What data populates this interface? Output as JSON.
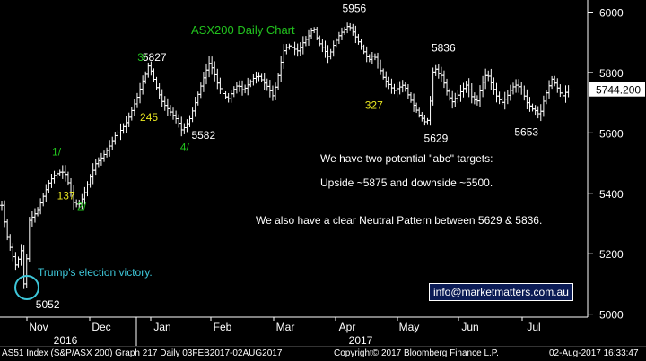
{
  "chart_data": {
    "type": "ohlc",
    "title": "ASX200 Daily Chart",
    "ylim": [
      4990,
      6040
    ],
    "y_ticks": [
      "6000",
      "5800",
      "5600",
      "5400",
      "5200",
      "5000"
    ],
    "x_month_labels": [
      "Nov",
      "Dec",
      "Jan",
      "Feb",
      "Mar",
      "Apr",
      "May",
      "Jun",
      "Jul"
    ],
    "x_year_labels": [
      "2016",
      "2017"
    ],
    "last_price": "5744.200",
    "last_price_value": 5744.2,
    "series_points": [
      [
        0,
        5360
      ],
      [
        4,
        5260
      ],
      [
        8,
        5200
      ],
      [
        12,
        5150
      ],
      [
        15,
        5230
      ],
      [
        18,
        5080
      ],
      [
        22,
        5310
      ],
      [
        28,
        5340
      ],
      [
        33,
        5390
      ],
      [
        38,
        5440
      ],
      [
        42,
        5460
      ],
      [
        46,
        5470
      ],
      [
        50,
        5470
      ],
      [
        54,
        5420
      ],
      [
        57,
        5370
      ],
      [
        61,
        5360
      ],
      [
        65,
        5390
      ],
      [
        70,
        5450
      ],
      [
        75,
        5500
      ],
      [
        80,
        5520
      ],
      [
        85,
        5550
      ],
      [
        90,
        5590
      ],
      [
        95,
        5610
      ],
      [
        100,
        5640
      ],
      [
        104,
        5680
      ],
      [
        108,
        5720
      ],
      [
        112,
        5770
      ],
      [
        115,
        5800
      ],
      [
        117,
        5827
      ],
      [
        120,
        5790
      ],
      [
        124,
        5740
      ],
      [
        128,
        5700
      ],
      [
        132,
        5680
      ],
      [
        136,
        5660
      ],
      [
        140,
        5640
      ],
      [
        143,
        5610
      ],
      [
        146,
        5620
      ],
      [
        150,
        5650
      ],
      [
        154,
        5700
      ],
      [
        158,
        5750
      ],
      [
        162,
        5800
      ],
      [
        165,
        5830
      ],
      [
        168,
        5810
      ],
      [
        172,
        5760
      ],
      [
        176,
        5730
      ],
      [
        180,
        5710
      ],
      [
        184,
        5740
      ],
      [
        188,
        5760
      ],
      [
        192,
        5740
      ],
      [
        196,
        5760
      ],
      [
        200,
        5780
      ],
      [
        204,
        5790
      ],
      [
        208,
        5770
      ],
      [
        212,
        5750
      ],
      [
        216,
        5720
      ],
      [
        220,
        5790
      ],
      [
        224,
        5870
      ],
      [
        228,
        5890
      ],
      [
        232,
        5880
      ],
      [
        236,
        5870
      ],
      [
        240,
        5900
      ],
      [
        244,
        5920
      ],
      [
        248,
        5950
      ],
      [
        252,
        5900
      ],
      [
        256,
        5880
      ],
      [
        260,
        5850
      ],
      [
        264,
        5890
      ],
      [
        268,
        5920
      ],
      [
        272,
        5940
      ],
      [
        276,
        5956
      ],
      [
        280,
        5930
      ],
      [
        284,
        5900
      ],
      [
        288,
        5870
      ],
      [
        292,
        5840
      ],
      [
        296,
        5860
      ],
      [
        300,
        5820
      ],
      [
        304,
        5780
      ],
      [
        308,
        5760
      ],
      [
        312,
        5740
      ],
      [
        316,
        5750
      ],
      [
        320,
        5760
      ],
      [
        324,
        5720
      ],
      [
        328,
        5690
      ],
      [
        332,
        5660
      ],
      [
        336,
        5640
      ],
      [
        338,
        5629
      ],
      [
        340,
        5660
      ],
      [
        342,
        5750
      ],
      [
        344,
        5836
      ],
      [
        346,
        5800
      ],
      [
        350,
        5790
      ],
      [
        354,
        5740
      ],
      [
        358,
        5700
      ],
      [
        362,
        5720
      ],
      [
        366,
        5740
      ],
      [
        370,
        5760
      ],
      [
        374,
        5720
      ],
      [
        378,
        5700
      ],
      [
        382,
        5760
      ],
      [
        386,
        5800
      ],
      [
        390,
        5760
      ],
      [
        394,
        5720
      ],
      [
        398,
        5700
      ],
      [
        402,
        5720
      ],
      [
        406,
        5750
      ],
      [
        410,
        5760
      ],
      [
        414,
        5740
      ],
      [
        418,
        5700
      ],
      [
        422,
        5680
      ],
      [
        426,
        5670
      ],
      [
        428,
        5653
      ],
      [
        430,
        5690
      ],
      [
        434,
        5740
      ],
      [
        438,
        5780
      ],
      [
        442,
        5750
      ],
      [
        446,
        5720
      ],
      [
        450,
        5740
      ],
      [
        452,
        5744
      ]
    ],
    "annotations": [
      {
        "text": "3/",
        "color": "#22c31e",
        "day": 108,
        "price": 5838
      },
      {
        "text": "5827",
        "color": "#ffffff",
        "day": 112,
        "price": 5838
      },
      {
        "text": "245",
        "color": "#e8e621",
        "day": 110,
        "price": 5640
      },
      {
        "text": "5582",
        "color": "#ffffff",
        "day": 151,
        "price": 5580
      },
      {
        "text": "4/",
        "color": "#22c31e",
        "day": 142,
        "price": 5540
      },
      {
        "text": "1/",
        "color": "#22c31e",
        "day": 40,
        "price": 5525
      },
      {
        "text": "137",
        "color": "#e8e621",
        "day": 44,
        "price": 5380
      },
      {
        "text": "2/",
        "color": "#22c31e",
        "day": 60,
        "price": 5345
      },
      {
        "text": "5956",
        "color": "#ffffff",
        "day": 271,
        "price": 6000
      },
      {
        "text": "5836",
        "color": "#ffffff",
        "day": 342,
        "price": 5870
      },
      {
        "text": "327",
        "color": "#e8e621",
        "day": 289,
        "price": 5680
      },
      {
        "text": "5629",
        "color": "#ffffff",
        "day": 336,
        "price": 5570
      },
      {
        "text": "5653",
        "color": "#ffffff",
        "day": 408,
        "price": 5590
      },
      {
        "text": "5052",
        "color": "#ffffff",
        "day": 27,
        "price": 5020
      }
    ]
  },
  "chart_title": "ASX200 Daily Chart",
  "notes": [
    "We have two potential \"abc\" targets:",
    "Upside ~5875 and downside ~5500.",
    "We also have a clear Neutral Pattern between 5629 & 5836."
  ],
  "election_label": "Trump's election victory.",
  "contact": "info@marketmatters.com.au",
  "footer": {
    "left": "AS51 Index (S&P/ASX 200) Graph 217  Daily 03FEB2017-02AUG2017",
    "center": "Copyright© 2017 Bloomberg Finance L.P.",
    "right": "02-Aug-2017 16:33:47"
  },
  "colors": {
    "background": "#000000",
    "bars": "#ffffff",
    "title_green": "#22c31e",
    "circle": "#3ec7d9",
    "election_text": "#3ec7d9",
    "contact_box": "#0b1b55"
  }
}
